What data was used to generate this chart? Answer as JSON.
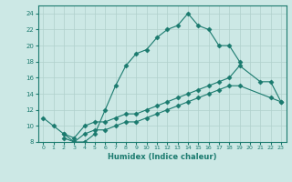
{
  "xlabel": "Humidex (Indice chaleur)",
  "xlim": [
    -0.5,
    23.5
  ],
  "ylim": [
    8,
    25
  ],
  "yticks": [
    8,
    10,
    12,
    14,
    16,
    18,
    20,
    22,
    24
  ],
  "xticks": [
    0,
    1,
    2,
    3,
    4,
    5,
    6,
    7,
    8,
    9,
    10,
    11,
    12,
    13,
    14,
    15,
    16,
    17,
    18,
    19,
    20,
    21,
    22,
    23
  ],
  "background_color": "#cce8e5",
  "line_color": "#1a7a6e",
  "grid_color": "#b0d0cc",
  "lines": [
    {
      "x": [
        0,
        1,
        2,
        3,
        4,
        5,
        6,
        7,
        8,
        9,
        10,
        11,
        12,
        13,
        14,
        15,
        16,
        17,
        18,
        19
      ],
      "y": [
        11,
        10,
        9,
        8,
        8,
        9,
        12,
        15,
        17.5,
        19,
        19.5,
        21,
        22,
        22.5,
        24,
        22.5,
        22,
        20,
        20,
        18
      ]
    },
    {
      "x": [
        2,
        3,
        4,
        5,
        6,
        7,
        8,
        9,
        10,
        11,
        12,
        13,
        14,
        15,
        16,
        17,
        18,
        19,
        21,
        22,
        23
      ],
      "y": [
        9,
        8.5,
        10,
        10.5,
        10.5,
        11,
        11.5,
        11.5,
        12,
        12.5,
        13,
        13.5,
        14,
        14.5,
        15,
        15.5,
        16,
        17.5,
        15.5,
        15.5,
        13
      ]
    },
    {
      "x": [
        2,
        3,
        4,
        5,
        6,
        7,
        8,
        9,
        10,
        11,
        12,
        13,
        14,
        15,
        16,
        17,
        18,
        19,
        22,
        23
      ],
      "y": [
        8.5,
        8,
        9,
        9.5,
        9.5,
        10,
        10.5,
        10.5,
        11,
        11.5,
        12,
        12.5,
        13,
        13.5,
        14,
        14.5,
        15,
        15,
        13.5,
        13
      ]
    }
  ]
}
